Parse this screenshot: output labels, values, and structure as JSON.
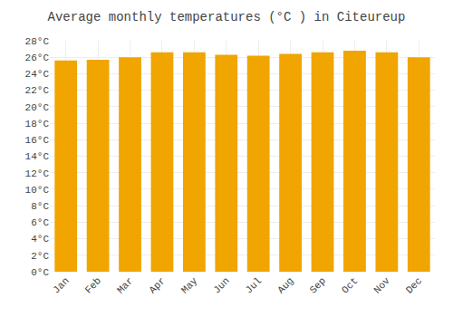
{
  "chart_data": {
    "type": "bar",
    "title": "Average monthly temperatures (°C ) in Citeureup",
    "categories": [
      "Jan",
      "Feb",
      "Mar",
      "Apr",
      "May",
      "Jun",
      "Jul",
      "Aug",
      "Sep",
      "Oct",
      "Nov",
      "Dec"
    ],
    "values": [
      25.6,
      25.7,
      26.0,
      26.6,
      26.6,
      26.3,
      26.2,
      26.4,
      26.6,
      26.8,
      26.6,
      26.0
    ],
    "color": "#F0A500",
    "ylim": [
      0,
      28
    ],
    "yticks": [
      {
        "value": 0,
        "label": "0°C"
      },
      {
        "value": 2,
        "label": "2°C"
      },
      {
        "value": 4,
        "label": "4°C"
      },
      {
        "value": 6,
        "label": "6°C"
      },
      {
        "value": 8,
        "label": "8°C"
      },
      {
        "value": 10,
        "label": "10°C"
      },
      {
        "value": 12,
        "label": "12°C"
      },
      {
        "value": 14,
        "label": "14°C"
      },
      {
        "value": 16,
        "label": "16°C"
      },
      {
        "value": 18,
        "label": "18°C"
      },
      {
        "value": 20,
        "label": "20°C"
      },
      {
        "value": 22,
        "label": "22°C"
      },
      {
        "value": 24,
        "label": "24°C"
      },
      {
        "value": 26,
        "label": "26°C"
      },
      {
        "value": 28,
        "label": "28°C"
      }
    ],
    "grid": true
  }
}
